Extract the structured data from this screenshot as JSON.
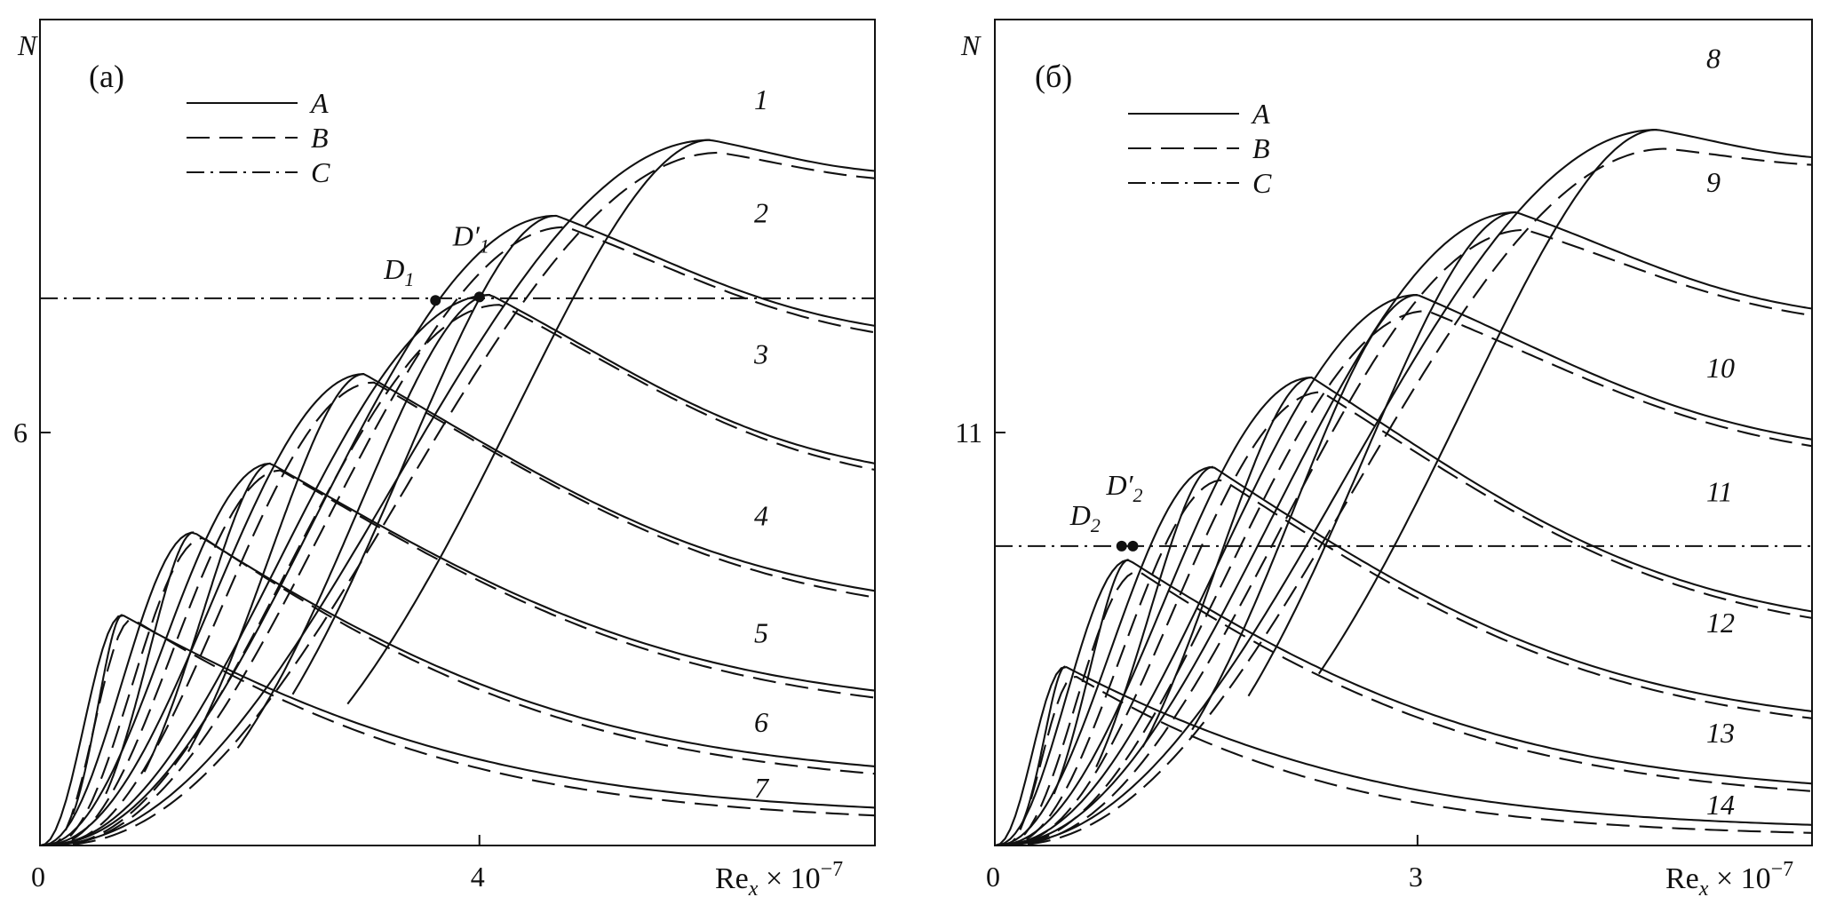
{
  "chart_data": [
    {
      "type": "line",
      "panel_label": "(a)",
      "ylabel": "N",
      "xlabel": "Re",
      "xlabel_sub": "x",
      "xlabel_suffix": " × 10",
      "xlabel_exp": "−7",
      "xlim": [
        0,
        7.6
      ],
      "ylim": [
        0,
        12
      ],
      "xticks": [
        {
          "value": 0,
          "label": "0"
        },
        {
          "value": 4,
          "label": "4"
        }
      ],
      "yticks": [
        {
          "value": 6,
          "label": "6"
        }
      ],
      "legend": [
        {
          "label": "A",
          "style": "solid"
        },
        {
          "label": "B",
          "style": "dashed"
        },
        {
          "label": "C",
          "style": "dashdot"
        }
      ],
      "C_level": 7.95,
      "families": [
        {
          "label": "1",
          "peak_x": 6.1,
          "peak_y": 10.25,
          "rise_start": 2.8,
          "end_y": 9.8,
          "label_x": 6.5,
          "label_y": 10.7
        },
        {
          "label": "2",
          "peak_x": 4.7,
          "peak_y": 9.15,
          "rise_start": 2.3,
          "end_y": 7.55,
          "label_x": 6.5,
          "label_y": 9.05
        },
        {
          "label": "3",
          "peak_x": 4.1,
          "peak_y": 8.0,
          "rise_start": 1.8,
          "end_y": 5.55,
          "label_x": 6.5,
          "label_y": 7.0
        },
        {
          "label": "4",
          "peak_x": 2.95,
          "peak_y": 6.85,
          "rise_start": 1.35,
          "end_y": 3.7,
          "label_x": 6.5,
          "label_y": 4.65
        },
        {
          "label": "5",
          "peak_x": 2.1,
          "peak_y": 5.55,
          "rise_start": 0.95,
          "end_y": 2.25,
          "label_x": 6.5,
          "label_y": 2.95
        },
        {
          "label": "6",
          "peak_x": 1.4,
          "peak_y": 4.55,
          "rise_start": 0.6,
          "end_y": 1.15,
          "label_x": 6.5,
          "label_y": 1.65
        },
        {
          "label": "7",
          "peak_x": 0.75,
          "peak_y": 3.35,
          "rise_start": 0.3,
          "end_y": 0.55,
          "label_x": 6.5,
          "label_y": 0.7
        }
      ],
      "points": [
        {
          "label": "D",
          "sub": "1",
          "prime": false,
          "x": 3.6,
          "y": 7.92
        },
        {
          "label": "D",
          "sub": "1",
          "prime": true,
          "x": 4.0,
          "y": 7.97
        }
      ]
    },
    {
      "type": "line",
      "panel_label": "(б)",
      "ylabel": "N",
      "xlabel": "Re",
      "xlabel_sub": "x",
      "xlabel_suffix": " × 10",
      "xlabel_exp": "−7",
      "xlim": [
        0,
        5.8
      ],
      "ylim": [
        5,
        17
      ],
      "xticks": [
        {
          "value": 0,
          "label": "0"
        },
        {
          "value": 3,
          "label": "3"
        }
      ],
      "yticks": [
        {
          "value": 11,
          "label": "11"
        }
      ],
      "legend": [
        {
          "label": "A",
          "style": "solid"
        },
        {
          "label": "B",
          "style": "dashed"
        },
        {
          "label": "C",
          "style": "dashdot"
        }
      ],
      "C_level": 9.35,
      "families": [
        {
          "label": "8",
          "peak_x": 4.7,
          "peak_y": 15.4,
          "rise_start": 2.3,
          "end_y": 15.0,
          "label_x": 5.05,
          "label_y": 16.3
        },
        {
          "label": "9",
          "peak_x": 3.7,
          "peak_y": 14.2,
          "rise_start": 1.8,
          "end_y": 12.8,
          "label_x": 5.05,
          "label_y": 14.5
        },
        {
          "label": "10",
          "peak_x": 3.0,
          "peak_y": 13.0,
          "rise_start": 1.4,
          "end_y": 10.9,
          "label_x": 5.05,
          "label_y": 11.8
        },
        {
          "label": "11",
          "peak_x": 2.25,
          "peak_y": 11.8,
          "rise_start": 1.05,
          "end_y": 8.4,
          "label_x": 5.05,
          "label_y": 10.0
        },
        {
          "label": "12",
          "peak_x": 1.55,
          "peak_y": 10.5,
          "rise_start": 0.72,
          "end_y": 6.95,
          "label_x": 5.05,
          "label_y": 8.1
        },
        {
          "label": "13",
          "peak_x": 0.95,
          "peak_y": 9.15,
          "rise_start": 0.42,
          "end_y": 5.9,
          "label_x": 5.05,
          "label_y": 6.5
        },
        {
          "label": "14",
          "peak_x": 0.5,
          "peak_y": 7.6,
          "rise_start": 0.2,
          "end_y": 5.3,
          "label_x": 5.05,
          "label_y": 5.45
        }
      ],
      "points": [
        {
          "label": "D",
          "sub": "2",
          "prime": false,
          "x": 0.9,
          "y": 9.35
        },
        {
          "label": "D",
          "sub": "2",
          "prime": true,
          "x": 0.98,
          "y": 9.35
        }
      ]
    }
  ]
}
